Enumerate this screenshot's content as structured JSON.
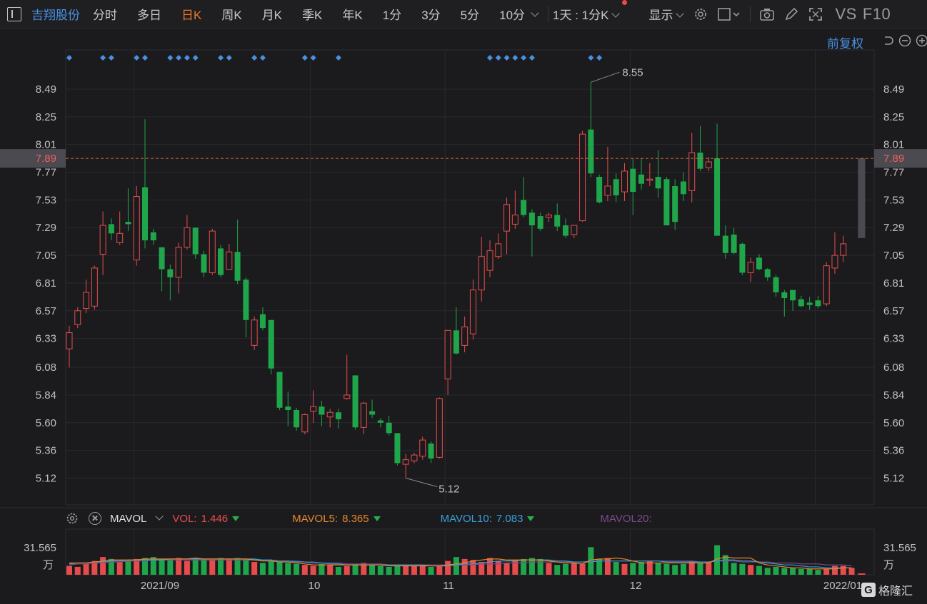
{
  "toolbar": {
    "stock_name": "吉翔股份",
    "periods": [
      "分时",
      "多日",
      "日K",
      "周K",
      "月K",
      "季K",
      "年K",
      "1分",
      "3分",
      "5分",
      "10分"
    ],
    "active_period": "日K",
    "interval_select": "1天 : 1分K",
    "display_label": "显示",
    "vs_label": "VS",
    "f10_label": "F10"
  },
  "adjust_label": "前复权",
  "price_axis": {
    "ticks": [
      "8.49",
      "8.25",
      "8.01",
      "7.77",
      "7.53",
      "7.29",
      "7.05",
      "6.81",
      "6.57",
      "6.33",
      "6.08",
      "5.84",
      "5.60",
      "5.36",
      "5.12"
    ],
    "current_price": "7.89",
    "high_label": "8.55",
    "low_label": "5.12"
  },
  "date_axis": [
    "2021/09",
    "10",
    "11",
    "12",
    "2022/01"
  ],
  "volume_panel": {
    "indicator": "MAVOL",
    "vol_label": "VOL:",
    "vol_value": "1.446",
    "ma5_label": "MAVOL5:",
    "ma5_value": "8.365",
    "ma10_label": "MAVOL10:",
    "ma10_value": "7.083",
    "ma20_label": "MAVOL20:",
    "axis_value": "31.565",
    "axis_unit": "万"
  },
  "colors": {
    "up": "#e74c4c",
    "down": "#1fa64a",
    "ma5": "#e8872a",
    "ma10": "#3a9fd8",
    "ma20": "#7a4a8a",
    "accent": "#4a90e2"
  },
  "watermark": "格隆汇",
  "chart_data": {
    "type": "candlestick",
    "ylim": [
      4.96,
      8.7
    ],
    "candles": [
      {
        "o": 6.24,
        "c": 6.38,
        "h": 6.44,
        "l": 6.08
      },
      {
        "o": 6.45,
        "c": 6.57,
        "h": 6.6,
        "l": 6.42
      },
      {
        "o": 6.59,
        "c": 6.73,
        "h": 6.84,
        "l": 6.55
      },
      {
        "o": 6.61,
        "c": 6.94,
        "h": 6.96,
        "l": 6.58
      },
      {
        "o": 7.06,
        "c": 7.31,
        "h": 7.43,
        "l": 6.88
      },
      {
        "o": 7.32,
        "c": 7.24,
        "h": 7.37,
        "l": 7.18
      },
      {
        "o": 7.16,
        "c": 7.24,
        "h": 7.43,
        "l": 7.14
      },
      {
        "o": 7.34,
        "c": 7.32,
        "h": 7.63,
        "l": 7.26
      },
      {
        "o": 7.01,
        "c": 7.56,
        "h": 7.65,
        "l": 6.96
      },
      {
        "o": 7.64,
        "c": 7.18,
        "h": 8.23,
        "l": 7.11
      },
      {
        "o": 7.25,
        "c": 7.18,
        "h": 7.28,
        "l": 7.14
      },
      {
        "o": 7.12,
        "c": 6.93,
        "h": 7.12,
        "l": 6.74
      },
      {
        "o": 6.93,
        "c": 6.86,
        "h": 6.97,
        "l": 6.66
      },
      {
        "o": 6.86,
        "c": 7.12,
        "h": 7.16,
        "l": 6.72
      },
      {
        "o": 7.12,
        "c": 7.29,
        "h": 7.4,
        "l": 7.1
      },
      {
        "o": 7.29,
        "c": 7.06,
        "h": 7.29,
        "l": 7.02
      },
      {
        "o": 7.06,
        "c": 6.9,
        "h": 7.09,
        "l": 6.86
      },
      {
        "o": 6.9,
        "c": 7.26,
        "h": 7.28,
        "l": 6.88
      },
      {
        "o": 7.11,
        "c": 6.88,
        "h": 7.14,
        "l": 6.86
      },
      {
        "o": 6.93,
        "c": 7.08,
        "h": 7.15,
        "l": 6.93
      },
      {
        "o": 7.08,
        "c": 6.83,
        "h": 7.36,
        "l": 6.8
      },
      {
        "o": 6.84,
        "c": 6.49,
        "h": 6.86,
        "l": 6.34
      },
      {
        "o": 6.27,
        "c": 6.49,
        "h": 6.52,
        "l": 6.23
      },
      {
        "o": 6.54,
        "c": 6.42,
        "h": 6.6,
        "l": 6.4
      },
      {
        "o": 6.49,
        "c": 6.07,
        "h": 6.49,
        "l": 6.02
      },
      {
        "o": 6.04,
        "c": 5.73,
        "h": 6.04,
        "l": 5.71
      },
      {
        "o": 5.74,
        "c": 5.71,
        "h": 5.87,
        "l": 5.57
      },
      {
        "o": 5.71,
        "c": 5.56,
        "h": 5.73,
        "l": 5.53
      },
      {
        "o": 5.52,
        "c": 5.67,
        "h": 5.68,
        "l": 5.5
      },
      {
        "o": 5.7,
        "c": 5.74,
        "h": 5.88,
        "l": 5.6
      },
      {
        "o": 5.74,
        "c": 5.67,
        "h": 5.79,
        "l": 5.57
      },
      {
        "o": 5.65,
        "c": 5.69,
        "h": 5.72,
        "l": 5.56
      },
      {
        "o": 5.69,
        "c": 5.63,
        "h": 5.72,
        "l": 5.55
      },
      {
        "o": 5.81,
        "c": 5.84,
        "h": 6.19,
        "l": 5.8
      },
      {
        "o": 6.01,
        "c": 5.56,
        "h": 6.01,
        "l": 5.54
      },
      {
        "o": 5.56,
        "c": 5.77,
        "h": 5.78,
        "l": 5.5
      },
      {
        "o": 5.7,
        "c": 5.67,
        "h": 5.8,
        "l": 5.64
      },
      {
        "o": 5.62,
        "c": 5.6,
        "h": 5.64,
        "l": 5.56
      },
      {
        "o": 5.6,
        "c": 5.51,
        "h": 5.66,
        "l": 5.49
      },
      {
        "o": 5.51,
        "c": 5.25,
        "h": 5.51,
        "l": 5.23
      },
      {
        "o": 5.24,
        "c": 5.28,
        "h": 5.33,
        "l": 5.12
      },
      {
        "o": 5.27,
        "c": 5.32,
        "h": 5.34,
        "l": 5.25
      },
      {
        "o": 5.31,
        "c": 5.45,
        "h": 5.48,
        "l": 5.28
      },
      {
        "o": 5.42,
        "c": 5.29,
        "h": 5.44,
        "l": 5.25
      },
      {
        "o": 5.3,
        "c": 5.81,
        "h": 5.82,
        "l": 5.29
      },
      {
        "o": 5.98,
        "c": 6.4,
        "h": 6.4,
        "l": 5.84
      },
      {
        "o": 6.4,
        "c": 6.2,
        "h": 6.6,
        "l": 6.19
      },
      {
        "o": 6.27,
        "c": 6.43,
        "h": 6.52,
        "l": 6.21
      },
      {
        "o": 6.37,
        "c": 6.75,
        "h": 6.84,
        "l": 6.32
      },
      {
        "o": 6.75,
        "c": 7.04,
        "h": 7.21,
        "l": 6.65
      },
      {
        "o": 6.92,
        "c": 7.09,
        "h": 7.18,
        "l": 6.86
      },
      {
        "o": 7.04,
        "c": 7.15,
        "h": 7.24,
        "l": 7.02
      },
      {
        "o": 7.26,
        "c": 7.49,
        "h": 7.55,
        "l": 7.06
      },
      {
        "o": 7.32,
        "c": 7.4,
        "h": 7.61,
        "l": 7.28
      },
      {
        "o": 7.53,
        "c": 7.4,
        "h": 7.73,
        "l": 7.38
      },
      {
        "o": 7.42,
        "c": 7.31,
        "h": 7.45,
        "l": 7.04
      },
      {
        "o": 7.39,
        "c": 7.28,
        "h": 7.42,
        "l": 7.26
      },
      {
        "o": 7.38,
        "c": 7.4,
        "h": 7.42,
        "l": 7.34
      },
      {
        "o": 7.4,
        "c": 7.3,
        "h": 7.5,
        "l": 7.26
      },
      {
        "o": 7.31,
        "c": 7.22,
        "h": 7.37,
        "l": 7.2
      },
      {
        "o": 7.23,
        "c": 7.31,
        "h": 7.31,
        "l": 7.2
      },
      {
        "o": 7.35,
        "c": 8.1,
        "h": 8.13,
        "l": 7.34
      },
      {
        "o": 8.14,
        "c": 7.76,
        "h": 8.55,
        "l": 7.73
      },
      {
        "o": 7.73,
        "c": 7.51,
        "h": 7.75,
        "l": 7.5
      },
      {
        "o": 7.57,
        "c": 7.65,
        "h": 7.99,
        "l": 7.52
      },
      {
        "o": 7.71,
        "c": 7.57,
        "h": 7.76,
        "l": 7.51
      },
      {
        "o": 7.6,
        "c": 7.78,
        "h": 7.85,
        "l": 7.52
      },
      {
        "o": 7.8,
        "c": 7.6,
        "h": 7.89,
        "l": 7.4
      },
      {
        "o": 7.75,
        "c": 7.67,
        "h": 7.89,
        "l": 7.62
      },
      {
        "o": 7.7,
        "c": 7.71,
        "h": 7.85,
        "l": 7.65
      },
      {
        "o": 7.73,
        "c": 7.63,
        "h": 7.96,
        "l": 7.55
      },
      {
        "o": 7.71,
        "c": 7.31,
        "h": 7.73,
        "l": 7.34
      },
      {
        "o": 7.65,
        "c": 7.34,
        "h": 7.71,
        "l": 7.27
      },
      {
        "o": 7.69,
        "c": 7.58,
        "h": 7.77,
        "l": 7.52
      },
      {
        "o": 7.61,
        "c": 7.94,
        "h": 8.11,
        "l": 7.51
      },
      {
        "o": 7.94,
        "c": 7.8,
        "h": 8.17,
        "l": 7.78
      },
      {
        "o": 7.81,
        "c": 7.86,
        "h": 7.9,
        "l": 7.78
      },
      {
        "o": 7.89,
        "c": 7.22,
        "h": 8.19,
        "l": 7.22
      },
      {
        "o": 7.22,
        "c": 7.07,
        "h": 7.31,
        "l": 7.02
      },
      {
        "o": 7.23,
        "c": 7.07,
        "h": 7.29,
        "l": 7.06
      },
      {
        "o": 7.15,
        "c": 6.9,
        "h": 7.16,
        "l": 6.88
      },
      {
        "o": 6.9,
        "c": 6.99,
        "h": 7.03,
        "l": 6.82
      },
      {
        "o": 7.03,
        "c": 6.93,
        "h": 7.06,
        "l": 6.92
      },
      {
        "o": 6.93,
        "c": 6.86,
        "h": 6.94,
        "l": 6.83
      },
      {
        "o": 6.86,
        "c": 6.73,
        "h": 6.88,
        "l": 6.69
      },
      {
        "o": 6.73,
        "c": 6.68,
        "h": 6.75,
        "l": 6.52
      },
      {
        "o": 6.75,
        "c": 6.66,
        "h": 6.75,
        "l": 6.57
      },
      {
        "o": 6.67,
        "c": 6.61,
        "h": 6.7,
        "l": 6.6
      },
      {
        "o": 6.64,
        "c": 6.62,
        "h": 6.69,
        "l": 6.58
      },
      {
        "o": 6.66,
        "c": 6.61,
        "h": 6.7,
        "l": 6.59
      },
      {
        "o": 6.63,
        "c": 6.96,
        "h": 6.99,
        "l": 6.61
      },
      {
        "o": 6.94,
        "c": 7.05,
        "h": 7.25,
        "l": 6.89
      },
      {
        "o": 7.05,
        "c": 7.15,
        "h": 7.22,
        "l": 6.99
      }
    ],
    "current": {
      "o": 7.89,
      "c": 7.2
    },
    "volume": {
      "ylim": [
        0,
        42
      ],
      "values": [
        9,
        8,
        11,
        14,
        18,
        16,
        13,
        15,
        16,
        17,
        18,
        15,
        16,
        17,
        14,
        17,
        16,
        15,
        17,
        16,
        17,
        16,
        13,
        12,
        14,
        13,
        12,
        11,
        10,
        9,
        11,
        10,
        8,
        9,
        11,
        12,
        10,
        9,
        8,
        9,
        10,
        9,
        10,
        8,
        9,
        14,
        18,
        16,
        15,
        13,
        17,
        14,
        12,
        15,
        16,
        17,
        16,
        12,
        10,
        11,
        12,
        11,
        28,
        16,
        17,
        13,
        11,
        12,
        13,
        14,
        12,
        11,
        10,
        11,
        14,
        12,
        13,
        30,
        20,
        12,
        11,
        10,
        9,
        7,
        8,
        7,
        7,
        6,
        6,
        5,
        6,
        9,
        9,
        7
      ],
      "ma5": [
        12,
        12,
        12,
        13,
        14,
        15,
        15,
        15,
        15,
        16,
        16,
        16,
        16,
        16,
        16,
        17,
        16,
        16,
        16,
        16,
        16,
        16,
        15,
        14,
        14,
        13,
        13,
        12,
        11,
        10,
        10,
        10,
        10,
        10,
        10,
        10,
        10,
        10,
        9,
        9,
        9,
        9,
        9,
        9,
        9,
        10,
        11,
        12,
        14,
        15,
        16,
        16,
        15,
        15,
        15,
        15,
        15,
        14,
        13,
        12,
        12,
        11,
        15,
        16,
        16,
        17,
        16,
        14,
        12,
        12,
        12,
        12,
        12,
        12,
        12,
        12,
        12,
        16,
        18,
        17,
        17,
        17,
        12,
        10,
        9,
        8,
        7,
        7,
        6,
        6,
        6,
        6,
        7,
        7
      ],
      "ma10": [
        11,
        12,
        12,
        13,
        13,
        14,
        14,
        15,
        15,
        15,
        15,
        15,
        16,
        16,
        16,
        16,
        16,
        16,
        16,
        16,
        16,
        16,
        16,
        15,
        15,
        14,
        14,
        13,
        13,
        12,
        12,
        11,
        11,
        10,
        10,
        10,
        10,
        10,
        10,
        10,
        10,
        10,
        10,
        9,
        9,
        9,
        10,
        11,
        11,
        12,
        13,
        14,
        14,
        14,
        15,
        15,
        15,
        15,
        14,
        14,
        13,
        13,
        13,
        14,
        14,
        14,
        14,
        14,
        14,
        14,
        14,
        13,
        13,
        13,
        13,
        13,
        13,
        14,
        15,
        15,
        14,
        14,
        13,
        12,
        11,
        10,
        10,
        9,
        8,
        8,
        7,
        7,
        7,
        7
      ],
      "ma20": [
        10,
        11,
        11,
        12,
        12,
        13,
        13,
        14,
        14,
        14,
        15,
        15,
        15,
        15,
        15,
        15,
        15,
        15,
        15,
        15,
        15,
        15,
        15,
        15,
        15,
        14,
        14,
        14,
        13,
        13,
        12,
        12,
        12,
        11,
        11,
        11,
        11,
        11,
        10,
        10,
        10,
        10,
        10,
        10,
        10,
        10,
        10,
        10,
        10,
        11,
        11,
        11,
        12,
        12,
        12,
        13,
        13,
        13,
        13,
        13,
        13,
        13,
        14,
        14,
        14,
        14,
        14,
        14,
        14,
        14,
        14,
        14,
        14,
        14,
        14,
        13,
        13,
        14,
        14,
        14,
        13,
        13,
        13,
        13,
        12,
        12,
        12,
        11,
        11,
        11,
        10,
        10,
        10,
        9
      ]
    },
    "event_marker_groups": [
      [
        0
      ],
      [
        4,
        5
      ],
      [
        8,
        9
      ],
      [
        12,
        13,
        14,
        15
      ],
      [
        18,
        19
      ],
      [
        22,
        23
      ],
      [
        28,
        29
      ],
      [
        32
      ],
      [
        50,
        51,
        52,
        53
      ],
      [
        54,
        55
      ],
      [
        62,
        63
      ]
    ]
  }
}
